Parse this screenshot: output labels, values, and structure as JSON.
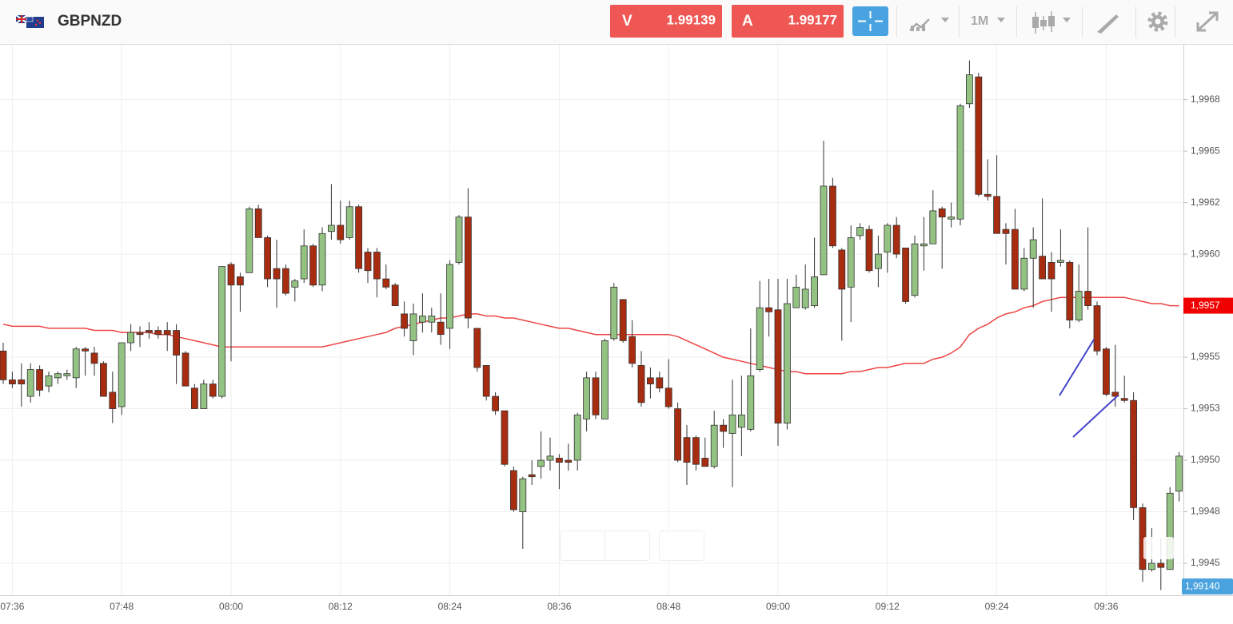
{
  "header": {
    "symbol": "GBPNZD",
    "bid_label": "V",
    "bid": "1.99139",
    "ask_label": "A",
    "ask": "1.99177",
    "timeframe": "1M"
  },
  "chart_data": {
    "type": "candlestick",
    "up_color": "#93c283",
    "down_color": "#a82d10",
    "grid": true,
    "ylim": [
      1.994345,
      1.997016
    ],
    "yticks": [
      {
        "value": 1.9945,
        "label": "1,9945"
      },
      {
        "value": 1.99475,
        "label": "1,9948"
      },
      {
        "value": 1.995,
        "label": "1,9950"
      },
      {
        "value": 1.99525,
        "label": "1,9953"
      },
      {
        "value": 1.9955,
        "label": "1,9955"
      },
      {
        "value": 1.996,
        "label": "1,9960"
      },
      {
        "value": 1.99625,
        "label": "1,9962"
      },
      {
        "value": 1.9965,
        "label": "1,9965"
      },
      {
        "value": 1.99675,
        "label": "1,9968"
      }
    ],
    "categories": [
      null,
      "07:36",
      null,
      null,
      null,
      null,
      null,
      null,
      null,
      null,
      null,
      null,
      null,
      "07:48",
      null,
      null,
      null,
      null,
      null,
      null,
      null,
      null,
      null,
      null,
      null,
      "08:00",
      null,
      null,
      null,
      null,
      null,
      null,
      null,
      null,
      null,
      null,
      null,
      "08:12",
      null,
      null,
      null,
      null,
      null,
      null,
      null,
      null,
      null,
      null,
      null,
      "08:24",
      null,
      null,
      null,
      null,
      null,
      null,
      null,
      null,
      null,
      null,
      null,
      "08:36",
      null,
      null,
      null,
      null,
      null,
      null,
      null,
      null,
      null,
      null,
      null,
      "08:48",
      null,
      null,
      null,
      null,
      null,
      null,
      null,
      null,
      null,
      null,
      null,
      "09:00",
      null,
      null,
      null,
      null,
      null,
      null,
      null,
      null,
      null,
      null,
      null,
      "09:12",
      null,
      null,
      null,
      null,
      null,
      null,
      null,
      null,
      null,
      null,
      null,
      "09:24",
      null,
      null,
      null,
      null,
      null,
      null,
      null,
      null,
      null,
      null,
      null,
      "09:36",
      null,
      null,
      null,
      null,
      null,
      null,
      null,
      null
    ],
    "open": [
      1.99553,
      1.99539,
      1.99539,
      1.99531,
      1.99544,
      1.99536,
      1.9954,
      1.99541,
      1.9954,
      1.99554,
      1.99552,
      1.99547,
      1.99533,
      1.99526,
      1.99557,
      1.99562,
      1.99563,
      1.99563,
      1.99563,
      1.99563,
      1.99552,
      1.99535,
      1.99525,
      1.99537,
      1.99531,
      1.99595,
      1.99589,
      1.99591,
      1.99622,
      1.99608,
      1.99593,
      1.99593,
      1.99584,
      1.99588,
      1.99604,
      1.99585,
      1.99611,
      1.99614,
      1.99608,
      1.99623,
      1.99601,
      1.99601,
      1.99588,
      1.99585,
      1.99571,
      1.99558,
      1.99567,
      1.99567,
      1.99567,
      1.99564,
      1.99596,
      1.99618,
      1.99564,
      1.99546,
      1.99531,
      1.99524,
      1.99495,
      1.99475,
      1.99493,
      1.99497,
      1.995,
      1.99501,
      1.995,
      1.995,
      1.9952,
      1.9954,
      1.9952,
      1.99559,
      1.99578,
      1.9956,
      1.99546,
      1.9954,
      1.9954,
      1.99535,
      1.99525,
      1.99511,
      1.99511,
      1.99501,
      1.99497,
      1.99517,
      1.99513,
      1.99516,
      1.99515,
      1.99544,
      1.99574,
      1.99573,
      1.99518,
      1.99574,
      1.99574,
      1.99575,
      1.9959,
      1.99633,
      1.99602,
      1.99584,
      1.99609,
      1.99612,
      1.99593,
      1.99601,
      1.99614,
      1.99603,
      1.9958,
      1.99604,
      1.99605,
      1.99622,
      1.99617,
      1.99617,
      1.99673,
      1.99686,
      1.99629,
      1.99628,
      1.99612,
      1.99612,
      1.99583,
      1.99598,
      1.99599,
      1.99596,
      1.99596,
      1.99596,
      1.99568,
      1.99582,
      1.99575,
      1.99554,
      1.99533,
      1.9953,
      1.99529,
      1.99477,
      1.99447,
      1.9945,
      1.99447,
      1.99485
    ],
    "high": [
      1.99557,
      1.99543,
      1.99547,
      1.99547,
      1.99546,
      1.99543,
      1.99543,
      1.99544,
      1.99555,
      1.99555,
      1.99555,
      1.99548,
      1.99543,
      1.99557,
      1.99566,
      1.99565,
      1.99567,
      1.99565,
      1.99567,
      1.99566,
      1.99553,
      1.99537,
      1.99539,
      1.99539,
      1.99594,
      1.99596,
      1.99591,
      1.99623,
      1.99624,
      1.99609,
      1.99607,
      1.99595,
      1.99588,
      1.99612,
      1.99605,
      1.99613,
      1.99634,
      1.99626,
      1.99626,
      1.99624,
      1.99603,
      1.99603,
      1.99595,
      1.99586,
      1.99577,
      1.99576,
      1.99581,
      1.99574,
      1.99581,
      1.99597,
      1.99619,
      1.99632,
      1.99564,
      1.99546,
      1.99533,
      1.99524,
      1.99497,
      1.99492,
      1.995,
      1.99514,
      1.99511,
      1.99503,
      1.99508,
      1.99523,
      1.99543,
      1.99543,
      1.99559,
      1.99586,
      1.99578,
      1.99568,
      1.99553,
      1.99545,
      1.99543,
      1.99549,
      1.99528,
      1.99517,
      1.99512,
      1.99511,
      1.99524,
      1.9952,
      1.99539,
      1.99541,
      1.99564,
      1.99587,
      1.99588,
      1.99588,
      1.99588,
      1.9959,
      1.99595,
      1.99608,
      1.99655,
      1.99637,
      1.99603,
      1.99614,
      1.99615,
      1.99614,
      1.99609,
      1.99615,
      1.99618,
      1.99603,
      1.99609,
      1.99618,
      1.99631,
      1.99623,
      1.99625,
      1.99673,
      1.99694,
      1.99688,
      1.99646,
      1.99648,
      1.99615,
      1.99622,
      1.99603,
      1.99613,
      1.99627,
      1.99601,
      1.99612,
      1.99597,
      1.99595,
      1.99613,
      1.99577,
      1.99555,
      1.99556,
      1.99541,
      1.99533,
      1.99479,
      1.99467,
      1.99462,
      1.99487,
      1.99504
    ],
    "low": [
      1.99537,
      1.99535,
      1.99526,
      1.99528,
      1.99531,
      1.99533,
      1.99537,
      1.99539,
      1.99535,
      1.99541,
      1.99541,
      1.99531,
      1.99518,
      1.99522,
      1.99553,
      1.99555,
      1.99559,
      1.99559,
      1.99553,
      1.99537,
      1.99536,
      1.99525,
      1.99525,
      1.9953,
      1.9953,
      1.99548,
      1.99572,
      1.99591,
      1.99608,
      1.99584,
      1.99574,
      1.9958,
      1.99577,
      1.99586,
      1.99584,
      1.99582,
      1.99607,
      1.99605,
      1.99607,
      1.99591,
      1.99586,
      1.99579,
      1.99583,
      1.99575,
      1.9956,
      1.99551,
      1.99562,
      1.99562,
      1.99556,
      1.99554,
      1.99595,
      1.99564,
      1.99543,
      1.99529,
      1.99522,
      1.99497,
      1.99475,
      1.99457,
      1.99488,
      1.99491,
      1.99495,
      1.99486,
      1.99495,
      1.99495,
      1.99514,
      1.9952,
      1.9952,
      1.99558,
      1.99557,
      1.99545,
      1.99526,
      1.9953,
      1.99533,
      1.99525,
      1.99499,
      1.99488,
      1.99495,
      1.99497,
      1.99496,
      1.99506,
      1.99487,
      1.99502,
      1.99514,
      1.99543,
      1.9956,
      1.99507,
      1.99515,
      1.99574,
      1.99573,
      1.99574,
      1.9959,
      1.99603,
      1.99558,
      1.99567,
      1.99607,
      1.99591,
      1.99584,
      1.99591,
      1.99598,
      1.99576,
      1.99579,
      1.99592,
      1.99605,
      1.99593,
      1.99613,
      1.99614,
      1.99671,
      1.99628,
      1.99626,
      1.9961,
      1.99595,
      1.99583,
      1.99582,
      1.99574,
      1.99588,
      1.99572,
      1.99594,
      1.99564,
      1.99567,
      1.99573,
      1.99551,
      1.99531,
      1.99526,
      1.99528,
      1.99471,
      1.99441,
      1.99446,
      1.99437,
      1.99447,
      1.9948
    ],
    "close": [
      1.99539,
      1.99537,
      1.99537,
      1.99544,
      1.99534,
      1.99541,
      1.99542,
      1.99542,
      1.99554,
      1.99553,
      1.99547,
      1.99531,
      1.99525,
      1.99557,
      1.99562,
      1.99561,
      1.99562,
      1.99561,
      1.99561,
      1.99551,
      1.99536,
      1.99525,
      1.99537,
      1.99531,
      1.99594,
      1.99585,
      1.99585,
      1.99622,
      1.99608,
      1.99588,
      1.99588,
      1.99581,
      1.99587,
      1.99604,
      1.99585,
      1.9961,
      1.99614,
      1.99607,
      1.99623,
      1.99593,
      1.99592,
      1.99588,
      1.99584,
      1.99575,
      1.99564,
      1.99571,
      1.9957,
      1.9957,
      1.99561,
      1.99595,
      1.99618,
      1.99569,
      1.99545,
      1.99531,
      1.99524,
      1.99498,
      1.99476,
      1.99491,
      1.99492,
      1.995,
      1.99502,
      1.99499,
      1.99499,
      1.99522,
      1.9954,
      1.99522,
      1.99558,
      1.99584,
      1.99558,
      1.99547,
      1.99528,
      1.99537,
      1.99535,
      1.99526,
      1.995,
      1.99499,
      1.99498,
      1.99497,
      1.99517,
      1.99514,
      1.99522,
      1.99522,
      1.99541,
      1.99574,
      1.99572,
      1.99518,
      1.99576,
      1.99584,
      1.99583,
      1.99589,
      1.99633,
      1.99604,
      1.99583,
      1.99608,
      1.99613,
      1.99592,
      1.996,
      1.99614,
      1.996,
      1.99577,
      1.99605,
      1.99605,
      1.99621,
      1.99618,
      1.99618,
      1.99672,
      1.99687,
      1.99629,
      1.99628,
      1.9961,
      1.9961,
      1.99583,
      1.99598,
      1.99607,
      1.99588,
      1.99588,
      1.99597,
      1.99568,
      1.99582,
      1.99575,
      1.99553,
      1.99532,
      1.99531,
      1.99529,
      1.99477,
      1.99447,
      1.9945,
      1.99448,
      1.99484,
      1.99502
    ],
    "ma": {
      "color": "#ee4444",
      "values": [
        1.99566,
        1.99565,
        1.99565,
        1.99565,
        1.99565,
        1.99564,
        1.99564,
        1.99564,
        1.99564,
        1.99564,
        1.99563,
        1.99563,
        1.99563,
        1.99562,
        1.99562,
        1.99562,
        1.99562,
        1.99561,
        1.99561,
        1.9956,
        1.99559,
        1.99558,
        1.99557,
        1.99556,
        1.99555,
        1.99555,
        1.99555,
        1.99555,
        1.99555,
        1.99555,
        1.99555,
        1.99555,
        1.99555,
        1.99555,
        1.99555,
        1.99555,
        1.99556,
        1.99557,
        1.99558,
        1.99559,
        1.9956,
        1.99561,
        1.99562,
        1.99564,
        1.99565,
        1.99566,
        1.99567,
        1.99568,
        1.99569,
        1.99569,
        1.9957,
        1.99571,
        1.99571,
        1.9957,
        1.9957,
        1.99569,
        1.99569,
        1.99568,
        1.99567,
        1.99566,
        1.99565,
        1.99564,
        1.99564,
        1.99563,
        1.99562,
        1.99561,
        1.99561,
        1.99561,
        1.99561,
        1.99561,
        1.99561,
        1.99561,
        1.99561,
        1.99561,
        1.9956,
        1.99558,
        1.99556,
        1.99554,
        1.99552,
        1.9955,
        1.99549,
        1.99548,
        1.99547,
        1.99546,
        1.99545,
        1.99544,
        1.99543,
        1.99543,
        1.99542,
        1.99542,
        1.99542,
        1.99542,
        1.99542,
        1.99543,
        1.99543,
        1.99544,
        1.99545,
        1.99545,
        1.99546,
        1.99547,
        1.99547,
        1.99547,
        1.99549,
        1.9955,
        1.99552,
        1.99555,
        1.99561,
        1.99564,
        1.99566,
        1.99569,
        1.99571,
        1.99572,
        1.99574,
        1.99575,
        1.99577,
        1.99578,
        1.99579,
        1.99579,
        1.99579,
        1.99579,
        1.99579,
        1.99579,
        1.99579,
        1.99579,
        1.99578,
        1.99577,
        1.99576,
        1.99576,
        1.99575,
        1.99575
      ]
    },
    "ma_tag": "1,9957",
    "price_tag": "1,99140"
  }
}
